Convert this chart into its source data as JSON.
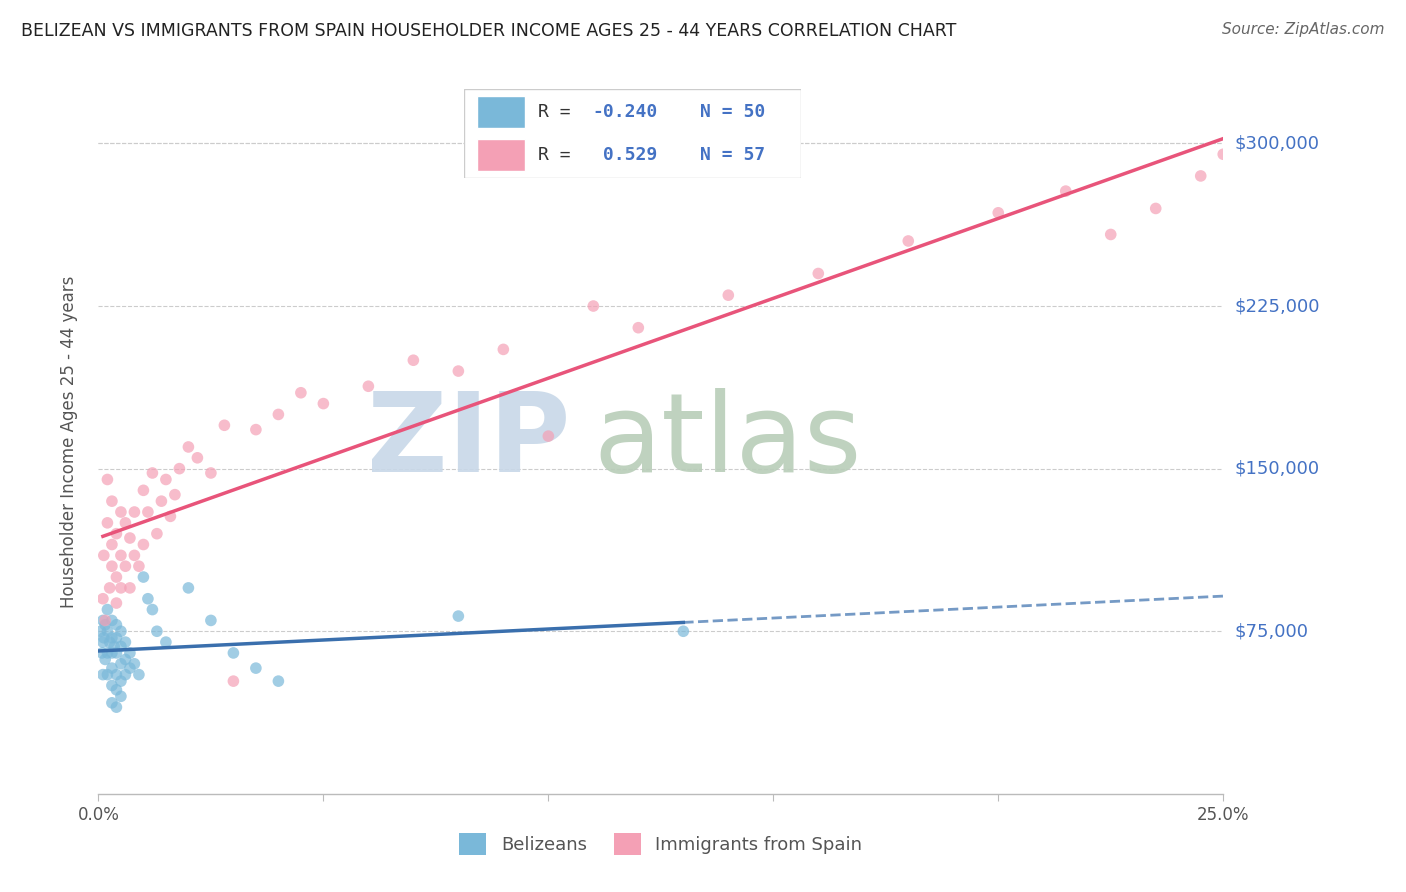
{
  "title": "BELIZEAN VS IMMIGRANTS FROM SPAIN HOUSEHOLDER INCOME AGES 25 - 44 YEARS CORRELATION CHART",
  "source": "Source: ZipAtlas.com",
  "ylabel": "Householder Income Ages 25 - 44 years",
  "yticks": [
    75000,
    150000,
    225000,
    300000
  ],
  "ytick_labels": [
    "$75,000",
    "$150,000",
    "$225,000",
    "$300,000"
  ],
  "xlim": [
    0.0,
    0.25
  ],
  "ylim": [
    0,
    325000
  ],
  "legend_r1": "-0.240",
  "legend_n1": "50",
  "legend_r2": "0.529",
  "legend_n2": "57",
  "color_blue": "#7ab8d9",
  "color_pink": "#f4a0b5",
  "color_blue_line": "#3a6fad",
  "color_pink_line": "#e8547a",
  "watermark_zip_color": "#c8d8e8",
  "watermark_atlas_color": "#b8cdb8",
  "belizean_x": [
    0.0005,
    0.0008,
    0.001,
    0.001,
    0.001,
    0.0012,
    0.0015,
    0.0015,
    0.002,
    0.002,
    0.002,
    0.002,
    0.0025,
    0.003,
    0.003,
    0.003,
    0.003,
    0.003,
    0.003,
    0.0035,
    0.004,
    0.004,
    0.004,
    0.004,
    0.004,
    0.004,
    0.005,
    0.005,
    0.005,
    0.005,
    0.005,
    0.006,
    0.006,
    0.006,
    0.007,
    0.007,
    0.008,
    0.009,
    0.01,
    0.011,
    0.012,
    0.013,
    0.015,
    0.02,
    0.025,
    0.03,
    0.035,
    0.04,
    0.08,
    0.13
  ],
  "belizean_y": [
    75000,
    65000,
    80000,
    70000,
    55000,
    72000,
    78000,
    62000,
    85000,
    75000,
    65000,
    55000,
    70000,
    80000,
    72000,
    65000,
    58000,
    50000,
    42000,
    68000,
    78000,
    72000,
    65000,
    55000,
    48000,
    40000,
    75000,
    68000,
    60000,
    52000,
    45000,
    70000,
    62000,
    55000,
    65000,
    58000,
    60000,
    55000,
    100000,
    90000,
    85000,
    75000,
    70000,
    95000,
    80000,
    65000,
    58000,
    52000,
    82000,
    75000
  ],
  "spain_x": [
    0.001,
    0.0012,
    0.0015,
    0.002,
    0.002,
    0.0025,
    0.003,
    0.003,
    0.003,
    0.004,
    0.004,
    0.004,
    0.005,
    0.005,
    0.005,
    0.006,
    0.006,
    0.007,
    0.007,
    0.008,
    0.008,
    0.009,
    0.01,
    0.01,
    0.011,
    0.012,
    0.013,
    0.014,
    0.015,
    0.016,
    0.017,
    0.018,
    0.02,
    0.022,
    0.025,
    0.028,
    0.03,
    0.035,
    0.04,
    0.05,
    0.06,
    0.07,
    0.08,
    0.1,
    0.12,
    0.14,
    0.16,
    0.18,
    0.2,
    0.215,
    0.225,
    0.235,
    0.245,
    0.25,
    0.045,
    0.09,
    0.11
  ],
  "spain_y": [
    90000,
    110000,
    80000,
    125000,
    145000,
    95000,
    115000,
    105000,
    135000,
    88000,
    120000,
    100000,
    130000,
    110000,
    95000,
    125000,
    105000,
    118000,
    95000,
    130000,
    110000,
    105000,
    115000,
    140000,
    130000,
    148000,
    120000,
    135000,
    145000,
    128000,
    138000,
    150000,
    160000,
    155000,
    148000,
    170000,
    52000,
    168000,
    175000,
    180000,
    188000,
    200000,
    195000,
    165000,
    215000,
    230000,
    240000,
    255000,
    268000,
    278000,
    258000,
    270000,
    285000,
    295000,
    185000,
    205000,
    225000
  ]
}
